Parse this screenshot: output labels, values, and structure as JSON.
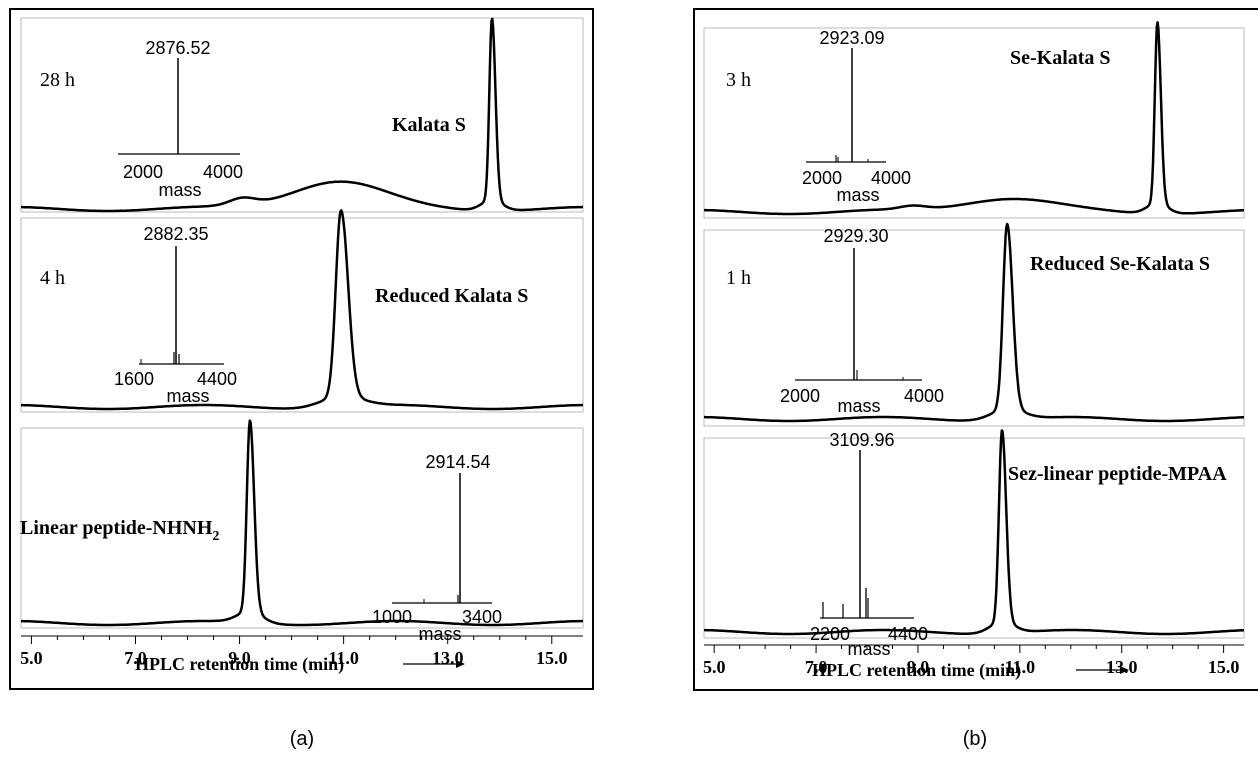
{
  "figures": [
    {
      "caption": "(a)",
      "xlabel": "HPLC retention time (min)",
      "xticks": [
        "5.0",
        "7.0",
        "9.0",
        "11.0",
        "13.0",
        "15.0"
      ],
      "xlim": [
        4.8,
        15.6
      ],
      "panels": [
        {
          "time_label": "28 h",
          "compound": "Kalata S",
          "peak_rt": 13.85,
          "peak_width": 0.05,
          "broad_hump": true,
          "ms": {
            "peak_label": "2876.52",
            "x_axis_labels": [
              "2000",
              "4000"
            ],
            "axis_title": "mass"
          }
        },
        {
          "time_label": "4 h",
          "compound": "Reduced Kalata S",
          "peak_rt": 10.95,
          "peak_width": 0.1,
          "broad_hump": false,
          "ms": {
            "peak_label": "2882.35",
            "x_axis_labels": [
              "1600",
              "4400"
            ],
            "axis_title": "mass"
          }
        },
        {
          "time_label": "",
          "compound": "Linear peptide-NHNH",
          "compound_sub": "2",
          "peak_rt": 9.2,
          "peak_width": 0.06,
          "broad_hump": false,
          "ms": {
            "peak_label": "2914.54",
            "x_axis_labels": [
              "1000",
              "3400"
            ],
            "axis_title": "mass"
          }
        }
      ]
    },
    {
      "caption": "(b)",
      "xlabel": "HPLC retention time (min)",
      "xticks": [
        "5.0",
        "7.0",
        "9.0",
        "11.0",
        "13.0",
        "15.0"
      ],
      "xlim": [
        4.8,
        15.4
      ],
      "panels": [
        {
          "time_label": "3 h",
          "compound": "Se-Kalata S",
          "peak_rt": 13.7,
          "peak_width": 0.05,
          "broad_hump": true,
          "ms": {
            "peak_label": "2923.09",
            "x_axis_labels": [
              "2000",
              "4000"
            ],
            "axis_title": "mass"
          }
        },
        {
          "time_label": "1 h",
          "compound": "Reduced Se-Kalata S",
          "peak_rt": 10.75,
          "peak_width": 0.08,
          "broad_hump": false,
          "ms": {
            "peak_label": "2929.30",
            "x_axis_labels": [
              "2000",
              "4000"
            ],
            "axis_title": "mass"
          }
        },
        {
          "time_label": "",
          "compound": "Sez-linear peptide-MPAA",
          "peak_rt": 10.65,
          "peak_width": 0.06,
          "broad_hump": false,
          "ms": {
            "peak_label": "3109.96",
            "x_axis_labels": [
              "2200",
              "4400"
            ],
            "axis_title": "mass"
          }
        }
      ]
    }
  ]
}
